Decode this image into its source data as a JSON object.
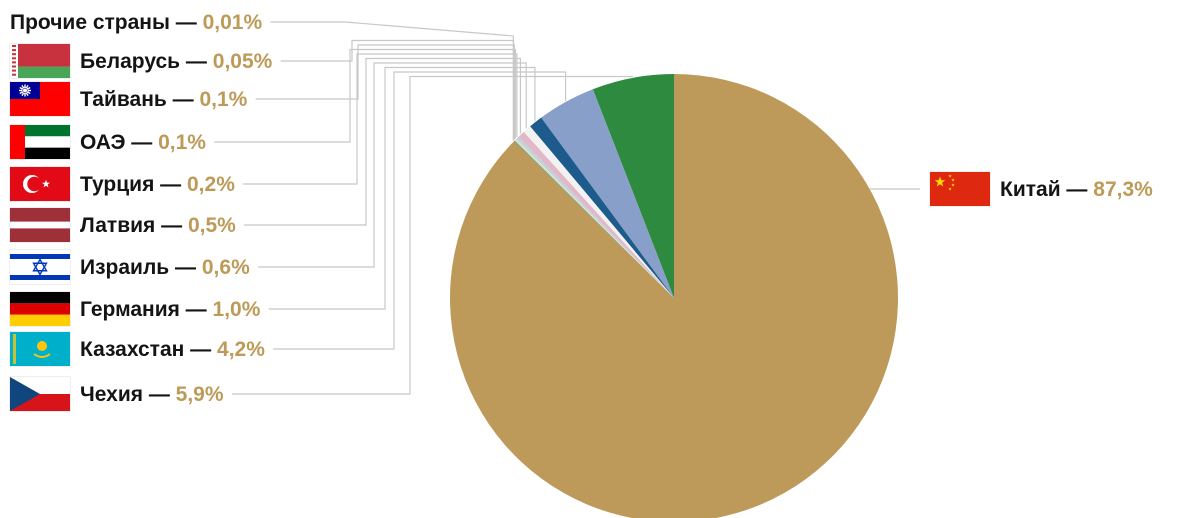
{
  "chart_data": {
    "type": "pie",
    "colors": {
      "text": "#141414",
      "value": "#bd9a58",
      "leader": "#c8c8c8"
    },
    "categories": [
      "Китай",
      "Чехия",
      "Казахстан",
      "Германия",
      "Израиль",
      "Латвия",
      "Турция",
      "ОАЭ",
      "Тайвань",
      "Беларусь",
      "Прочие страны"
    ],
    "values": [
      87.3,
      5.9,
      4.2,
      1.0,
      0.6,
      0.5,
      0.2,
      0.1,
      0.1,
      0.05,
      0.01
    ],
    "slices": [
      {
        "name": "Китай",
        "value": 87.3,
        "label": "87,3%",
        "color": "#be9a5a",
        "flag": "china-flag"
      },
      {
        "name": "Чехия",
        "value": 5.9,
        "label": "5,9%",
        "color": "#2e8a3e",
        "flag": "czech-flag"
      },
      {
        "name": "Казахстан",
        "value": 4.2,
        "label": "4,2%",
        "color": "#889fca",
        "flag": "kazakhstan-flag"
      },
      {
        "name": "Германия",
        "value": 1.0,
        "label": "1,0%",
        "color": "#1d5b8c",
        "flag": "germany-flag"
      },
      {
        "name": "Израиль",
        "value": 0.6,
        "label": "0,6%",
        "color": "#f2f2f2",
        "flag": "israel-flag"
      },
      {
        "name": "Латвия",
        "value": 0.5,
        "label": "0,5%",
        "color": "#e3b8c6",
        "flag": "latvia-flag"
      },
      {
        "name": "Турция",
        "value": 0.2,
        "label": "0,2%",
        "color": "#b9d2e8",
        "flag": "turkey-flag"
      },
      {
        "name": "ОАЭ",
        "value": 0.1,
        "label": "0,1%",
        "color": "#e8d8a8",
        "flag": "uae-flag"
      },
      {
        "name": "Тайвань",
        "value": 0.1,
        "label": "0,1%",
        "color": "#cfe3c6",
        "flag": "taiwan-flag"
      },
      {
        "name": "Беларусь",
        "value": 0.05,
        "label": "0,05%",
        "color": "#3c8c96",
        "flag": "belarus-flag"
      },
      {
        "name": "Прочие страны",
        "value": 0.01,
        "label": "0,01%",
        "color": "#7a6a3a",
        "flag": ""
      }
    ],
    "title": "",
    "legend": "outside labels with leader lines"
  }
}
